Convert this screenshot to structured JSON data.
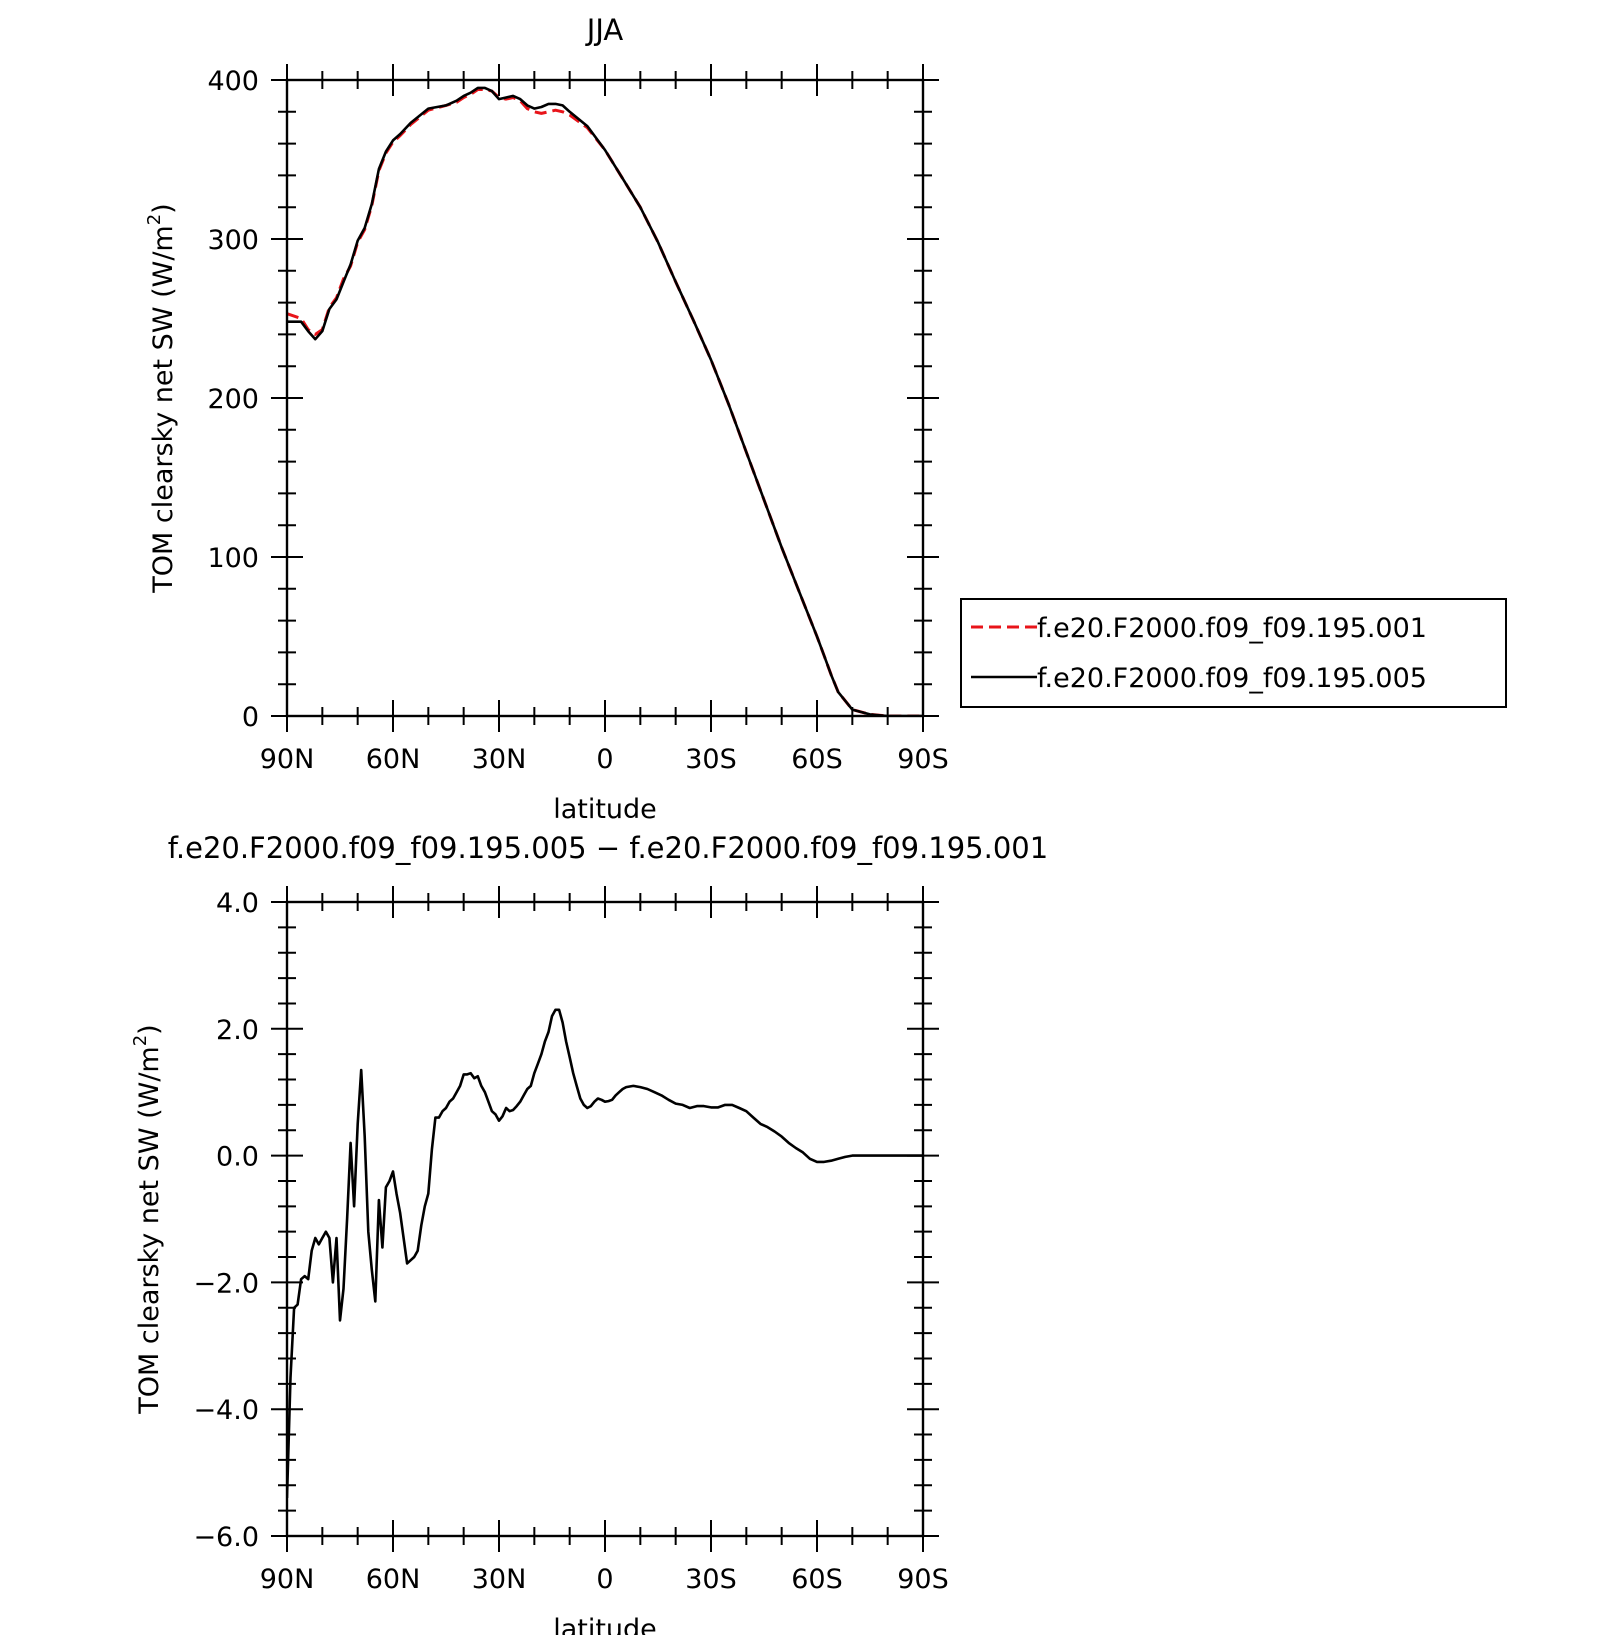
{
  "chart_data": [
    {
      "type": "line",
      "title": "JJA",
      "xlabel": "latitude",
      "ylabel": "TOM clearsky net SW (W/m²)",
      "ylabel_main": "TOM clearsky net SW (W/m",
      "ylabel_sup": "2",
      "ylabel_close": ")",
      "xlim": [
        90,
        -90
      ],
      "ylim": [
        0,
        400
      ],
      "x_ticks": [
        90,
        60,
        30,
        0,
        -30,
        -60,
        -90
      ],
      "x_tick_labels": [
        "90N",
        "60N",
        "30N",
        "0",
        "30S",
        "60S",
        "90S"
      ],
      "y_ticks": [
        0,
        100,
        200,
        300,
        400
      ],
      "y_tick_labels": [
        "0",
        "100",
        "200",
        "300",
        "400"
      ],
      "legend_position": "right",
      "grid": false,
      "series": [
        {
          "name": "f.e20.F2000.f09_f09.195.001",
          "color": "#e8141a",
          "style": "dashed",
          "x": [
            90,
            86,
            84,
            82,
            80,
            78,
            76,
            74,
            72,
            70,
            68,
            66,
            64,
            62,
            60,
            58,
            55,
            50,
            45,
            42,
            40,
            38,
            36,
            34,
            32,
            30,
            28,
            26,
            24,
            22,
            20,
            18,
            16,
            14,
            12,
            10,
            5,
            0,
            -5,
            -10,
            -15,
            -20,
            -25,
            -30,
            -35,
            -40,
            -45,
            -50,
            -55,
            -60,
            -62,
            -64,
            -66,
            -70,
            -75,
            -80,
            -85,
            -90
          ],
          "y": [
            253,
            250,
            243,
            240,
            243,
            257,
            263,
            275,
            283,
            298,
            306,
            321,
            343,
            354,
            361,
            365,
            372,
            381,
            384,
            386,
            389,
            391,
            394,
            394,
            393,
            389,
            388,
            389,
            387,
            382,
            380,
            379,
            380,
            381,
            380,
            378,
            370,
            356,
            338,
            320,
            298,
            273,
            249,
            224,
            196,
            166,
            136,
            106,
            78,
            50,
            38,
            26,
            15,
            4,
            1,
            0,
            0,
            0
          ]
        },
        {
          "name": "f.e20.F2000.f09_f09.195.005",
          "color": "#000000",
          "style": "solid",
          "x": [
            90,
            86,
            84,
            82,
            80,
            78,
            76,
            74,
            72,
            70,
            68,
            66,
            64,
            62,
            60,
            58,
            55,
            50,
            45,
            42,
            40,
            38,
            36,
            34,
            32,
            30,
            28,
            26,
            24,
            22,
            20,
            18,
            16,
            14,
            12,
            10,
            5,
            0,
            -5,
            -10,
            -15,
            -20,
            -25,
            -30,
            -35,
            -40,
            -45,
            -50,
            -55,
            -60,
            -62,
            -64,
            -66,
            -70,
            -75,
            -80,
            -85,
            -90
          ],
          "y": [
            248,
            248,
            242,
            237,
            242,
            256,
            262,
            273,
            284,
            299,
            307,
            322,
            344,
            355,
            362,
            366,
            373,
            382,
            384,
            387,
            390,
            392,
            395,
            395,
            393,
            388,
            389,
            390,
            388,
            384,
            382,
            383,
            385,
            385,
            384,
            380,
            371,
            356,
            338,
            320,
            298,
            273,
            249,
            224,
            196,
            166,
            136,
            106,
            78,
            50,
            38,
            26,
            15,
            4,
            1,
            0,
            0,
            0
          ]
        }
      ]
    },
    {
      "type": "line",
      "title": "f.e20.F2000.f09_f09.195.005 − f.e20.F2000.f09_f09.195.001",
      "xlabel": "latitude",
      "ylabel": "TOM clearsky net SW (W/m²)",
      "ylabel_main": "TOM clearsky net SW (W/m",
      "ylabel_sup": "2",
      "ylabel_close": ")",
      "xlim": [
        90,
        -90
      ],
      "ylim": [
        -6.0,
        4.0
      ],
      "x_ticks": [
        90,
        60,
        30,
        0,
        -30,
        -60,
        -90
      ],
      "x_tick_labels": [
        "90N",
        "60N",
        "30N",
        "0",
        "30S",
        "60S",
        "90S"
      ],
      "y_ticks": [
        -6.0,
        -4.0,
        -2.0,
        0.0,
        2.0,
        4.0
      ],
      "y_tick_labels": [
        "−6.0",
        "−4.0",
        "−2.0",
        "0.0",
        "2.0",
        "4.0"
      ],
      "grid": false,
      "series": [
        {
          "color": "#000000",
          "style": "solid",
          "x": [
            90,
            89,
            88,
            87,
            86,
            85,
            84,
            83,
            82,
            81,
            80,
            79,
            78,
            77,
            76,
            75,
            74,
            73,
            72,
            71,
            70,
            69,
            68,
            67,
            66,
            65,
            64,
            63,
            62,
            61,
            60,
            59,
            58,
            56,
            55,
            54,
            53,
            52,
            51,
            50,
            49,
            48,
            47,
            46,
            45,
            44,
            43,
            42,
            41,
            40,
            39,
            38,
            37,
            36,
            35,
            34,
            33,
            32,
            31,
            30,
            29,
            28,
            27,
            26,
            25,
            24,
            23,
            22,
            21,
            20,
            19,
            18,
            17,
            16,
            15,
            14,
            13,
            12,
            11,
            10,
            9,
            8,
            7,
            6,
            5,
            4,
            3,
            2,
            1,
            0,
            -1,
            -2,
            -3,
            -4,
            -5,
            -6,
            -8,
            -10,
            -12,
            -14,
            -16,
            -18,
            -20,
            -22,
            -24,
            -26,
            -28,
            -30,
            -32,
            -34,
            -36,
            -38,
            -40,
            -42,
            -44,
            -46,
            -48,
            -50,
            -52,
            -54,
            -56,
            -58,
            -60,
            -62,
            -64,
            -66,
            -68,
            -70,
            -72,
            -74,
            -76,
            -78,
            -80,
            -82,
            -84,
            -86,
            -88,
            -90
          ],
          "y": [
            -5.4,
            -3.5,
            -2.4,
            -2.35,
            -1.95,
            -1.9,
            -1.95,
            -1.5,
            -1.3,
            -1.4,
            -1.3,
            -1.2,
            -1.3,
            -2.0,
            -1.3,
            -2.6,
            -2.1,
            -1.0,
            0.2,
            -0.8,
            0.5,
            1.35,
            0.3,
            -1.2,
            -1.8,
            -2.3,
            -0.7,
            -1.45,
            -0.5,
            -0.4,
            -0.25,
            -0.6,
            -0.9,
            -1.7,
            -1.65,
            -1.6,
            -1.5,
            -1.1,
            -0.8,
            -0.6,
            0.1,
            0.6,
            0.6,
            0.7,
            0.75,
            0.85,
            0.9,
            1.0,
            1.1,
            1.28,
            1.28,
            1.3,
            1.22,
            1.25,
            1.1,
            1.0,
            0.85,
            0.7,
            0.65,
            0.55,
            0.62,
            0.75,
            0.7,
            0.72,
            0.78,
            0.85,
            0.95,
            1.05,
            1.1,
            1.3,
            1.45,
            1.6,
            1.8,
            1.95,
            2.2,
            2.3,
            2.3,
            2.1,
            1.8,
            1.55,
            1.3,
            1.1,
            0.9,
            0.8,
            0.75,
            0.78,
            0.85,
            0.9,
            0.88,
            0.85,
            0.86,
            0.88,
            0.95,
            1.0,
            1.05,
            1.08,
            1.1,
            1.08,
            1.05,
            1.0,
            0.95,
            0.88,
            0.82,
            0.8,
            0.75,
            0.78,
            0.78,
            0.76,
            0.76,
            0.8,
            0.8,
            0.75,
            0.7,
            0.6,
            0.5,
            0.45,
            0.38,
            0.3,
            0.2,
            0.12,
            0.05,
            -0.05,
            -0.1,
            -0.1,
            -0.08,
            -0.05,
            -0.02,
            0.0,
            0.0,
            0.0,
            0.0,
            0.0,
            0.0,
            0.0,
            0.0,
            0.0,
            0.0,
            0.0
          ]
        }
      ]
    }
  ]
}
